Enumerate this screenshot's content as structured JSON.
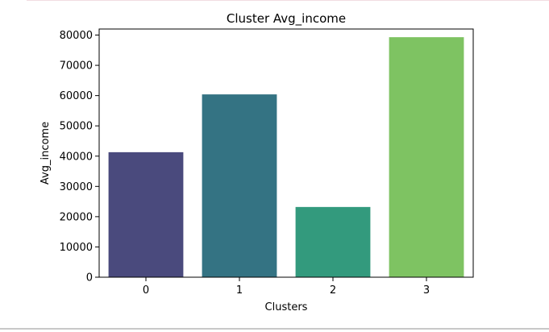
{
  "chart_data": {
    "type": "bar",
    "title": "Cluster Avg_income",
    "xlabel": "Clusters",
    "ylabel": "Avg_income",
    "categories": [
      "0",
      "1",
      "2",
      "3"
    ],
    "values": [
      41300,
      60400,
      23200,
      79300
    ],
    "colors": [
      "#4a4a7d",
      "#347383",
      "#339a7d",
      "#7ec362"
    ],
    "ylim": [
      0,
      82000
    ],
    "yticks": [
      0,
      10000,
      20000,
      30000,
      40000,
      50000,
      60000,
      70000,
      80000
    ],
    "grid": false,
    "legend": "none"
  }
}
